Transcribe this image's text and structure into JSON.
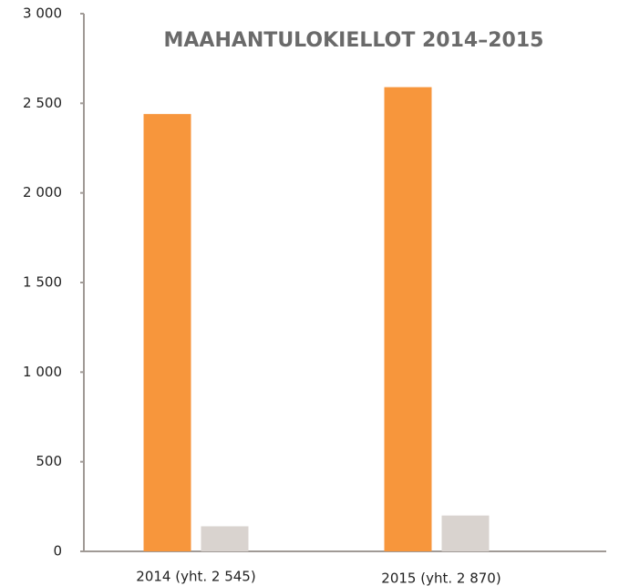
{
  "chart_data": {
    "type": "bar",
    "title": "MAAHANTULOKIELLOT 2014–2015",
    "categories": [
      "2014 (yht. 2 545)",
      "2015 (yht. 2 870)"
    ],
    "series": [
      {
        "color": "#f7963c",
        "values": [
          2440,
          2590
        ]
      },
      {
        "color": "#d9d3cf",
        "values": [
          140,
          200
        ]
      }
    ],
    "ylim": [
      0,
      3000
    ],
    "yticks": [
      0,
      {
        "value": 500,
        "label": "500"
      },
      {
        "value": 1000,
        "label": "1 000"
      },
      {
        "value": 1500,
        "label": "1 500"
      },
      {
        "value": 2000,
        "label": "2 000"
      },
      {
        "value": 2500,
        "label": "2 500"
      },
      {
        "value": 3000,
        "label": "3 000"
      }
    ],
    "grid": false
  }
}
